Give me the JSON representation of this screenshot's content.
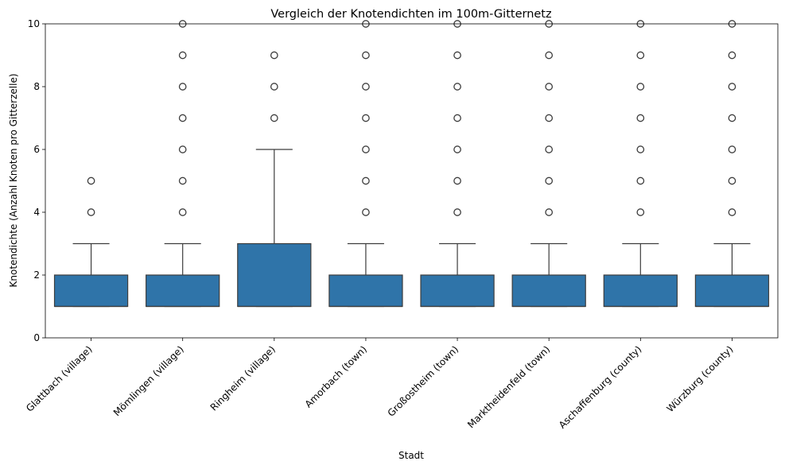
{
  "chart_data": {
    "type": "box",
    "title": "Vergleich der Knotendichten im 100m-Gitternetz",
    "xlabel": "Stadt",
    "ylabel": "Knotendichte (Anzahl Knoten pro Gitterzelle)",
    "ylim": [
      0,
      10
    ],
    "yticks": [
      0,
      2,
      4,
      6,
      8,
      10
    ],
    "grid": false,
    "legend": "none",
    "box_color": "#2f74a9",
    "edge_color": "#3d3d3d",
    "categories": [
      "Glattbach (village)",
      "Mömlingen (village)",
      "Ringheim (village)",
      "Amorbach (town)",
      "Großostheim (town)",
      "Marktheidenfeld (town)",
      "Aschaffenburg (county)",
      "Würzburg (county)"
    ],
    "boxes": [
      {
        "whisker_low": 1,
        "q1": 1,
        "median": 1,
        "q3": 2,
        "whisker_high": 3,
        "outliers": [
          4,
          5
        ]
      },
      {
        "whisker_low": 1,
        "q1": 1,
        "median": 1,
        "q3": 2,
        "whisker_high": 3,
        "outliers": [
          4,
          5,
          6,
          7,
          8,
          9,
          10
        ]
      },
      {
        "whisker_low": 1,
        "q1": 1,
        "median": 1,
        "q3": 3,
        "whisker_high": 6,
        "outliers": [
          7,
          8,
          9
        ]
      },
      {
        "whisker_low": 1,
        "q1": 1,
        "median": 1,
        "q3": 2,
        "whisker_high": 3,
        "outliers": [
          4,
          5,
          6,
          7,
          8,
          9,
          10
        ]
      },
      {
        "whisker_low": 1,
        "q1": 1,
        "median": 1,
        "q3": 2,
        "whisker_high": 3,
        "outliers": [
          4,
          5,
          6,
          7,
          8,
          9,
          10
        ]
      },
      {
        "whisker_low": 1,
        "q1": 1,
        "median": 1,
        "q3": 2,
        "whisker_high": 3,
        "outliers": [
          4,
          5,
          6,
          7,
          8,
          9,
          10
        ]
      },
      {
        "whisker_low": 1,
        "q1": 1,
        "median": 1,
        "q3": 2,
        "whisker_high": 3,
        "outliers": [
          4,
          5,
          6,
          7,
          8,
          9,
          10
        ]
      },
      {
        "whisker_low": 1,
        "q1": 1,
        "median": 1,
        "q3": 2,
        "whisker_high": 3,
        "outliers": [
          4,
          5,
          6,
          7,
          8,
          9,
          10
        ]
      }
    ]
  }
}
